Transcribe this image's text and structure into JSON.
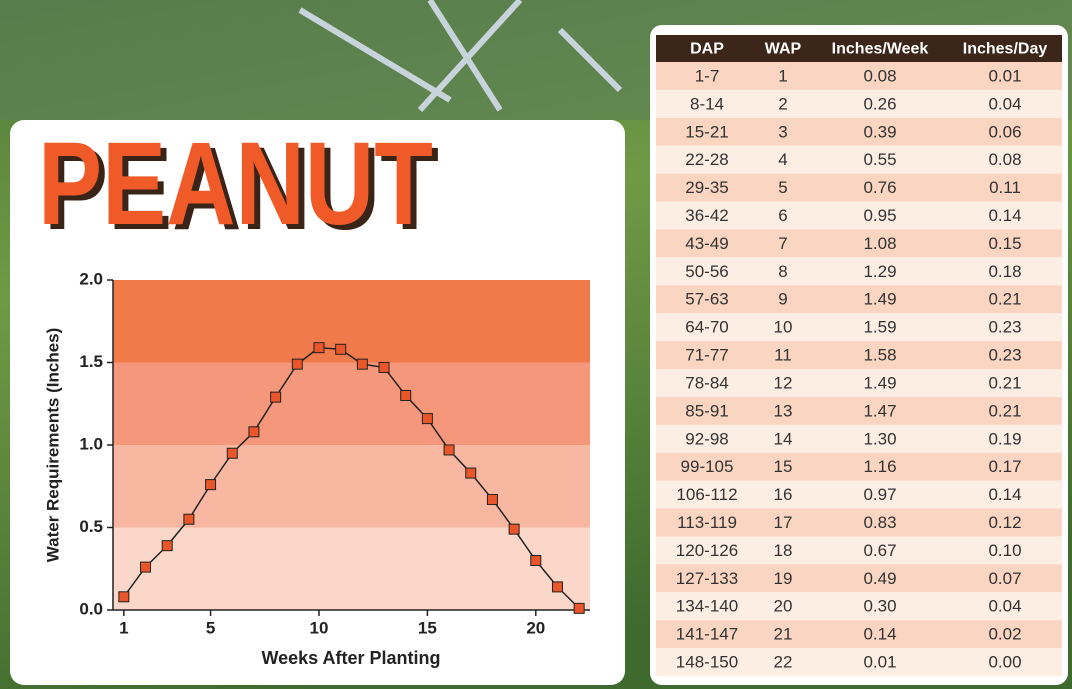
{
  "chart_data": {
    "type": "line",
    "title": "PEANUT",
    "x_label": "Weeks After Planting",
    "y_label": "Water Requirements (Inches)",
    "x": [
      1,
      2,
      3,
      4,
      5,
      6,
      7,
      8,
      9,
      10,
      11,
      12,
      13,
      14,
      15,
      16,
      17,
      18,
      19,
      20,
      21,
      22
    ],
    "series": [
      {
        "color": "#e8562a",
        "values": [
          0.08,
          0.26,
          0.39,
          0.55,
          0.76,
          0.95,
          1.08,
          1.29,
          1.49,
          1.59,
          1.58,
          1.49,
          1.47,
          1.3,
          1.16,
          0.97,
          0.83,
          0.67,
          0.49,
          0.3,
          0.14,
          0.01
        ]
      }
    ],
    "xlim": [
      0.5,
      22.5
    ],
    "xticks": [
      1,
      5,
      10,
      15,
      20
    ],
    "ylim": [
      0,
      2
    ],
    "yticks": [
      {
        "value": 0,
        "label": "0.0"
      },
      {
        "value": 0.5,
        "label": "0.5"
      },
      {
        "value": 1,
        "label": "1.0"
      },
      {
        "value": 1.5,
        "label": "1.5"
      },
      {
        "value": 2,
        "label": "2.0"
      }
    ],
    "band_colors": [
      "#fad7c8",
      "#f7b7a0",
      "#f4977a",
      "#f07a4a"
    ]
  },
  "table": {
    "header": [
      "DAP",
      "WAP",
      "Inches/Week",
      "Inches/Day"
    ],
    "rows": [
      [
        "1-7",
        "1",
        "0.08",
        "0.01"
      ],
      [
        "8-14",
        "2",
        "0.26",
        "0.04"
      ],
      [
        "15-21",
        "3",
        "0.39",
        "0.06"
      ],
      [
        "22-28",
        "4",
        "0.55",
        "0.08"
      ],
      [
        "29-35",
        "5",
        "0.76",
        "0.11"
      ],
      [
        "36-42",
        "6",
        "0.95",
        "0.14"
      ],
      [
        "43-49",
        "7",
        "1.08",
        "0.15"
      ],
      [
        "50-56",
        "8",
        "1.29",
        "0.18"
      ],
      [
        "57-63",
        "9",
        "1.49",
        "0.21"
      ],
      [
        "64-70",
        "10",
        "1.59",
        "0.23"
      ],
      [
        "71-77",
        "11",
        "1.58",
        "0.23"
      ],
      [
        "78-84",
        "12",
        "1.49",
        "0.21"
      ],
      [
        "85-91",
        "13",
        "1.47",
        "0.21"
      ],
      [
        "92-98",
        "14",
        "1.30",
        "0.19"
      ],
      [
        "99-105",
        "15",
        "1.16",
        "0.17"
      ],
      [
        "106-112",
        "16",
        "0.97",
        "0.14"
      ],
      [
        "113-119",
        "17",
        "0.83",
        "0.12"
      ],
      [
        "120-126",
        "18",
        "0.67",
        "0.10"
      ],
      [
        "127-133",
        "19",
        "0.49",
        "0.07"
      ],
      [
        "134-140",
        "20",
        "0.30",
        "0.04"
      ],
      [
        "141-147",
        "21",
        "0.14",
        "0.02"
      ],
      [
        "148-150",
        "22",
        "0.01",
        "0.00"
      ]
    ]
  }
}
